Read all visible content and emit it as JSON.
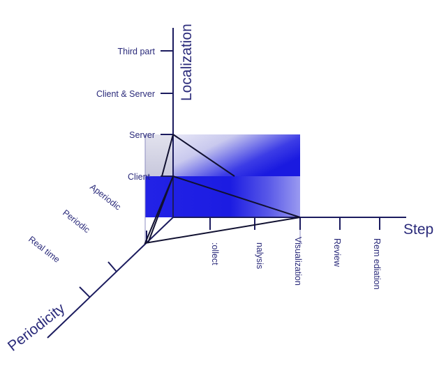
{
  "axes": {
    "localization": {
      "title": "Localization",
      "ticks": [
        "Third part",
        "Client & Server",
        "Server",
        "Client"
      ]
    },
    "step": {
      "title": "Step",
      "ticks": [
        "Collect",
        "Analysis",
        "Visualization",
        "Review",
        "Remediation"
      ],
      "tick_texts": [
        ":ollect",
        "nalysis",
        "Visualization",
        "Review",
        "Rem ediation"
      ]
    },
    "periodicity": {
      "title": "Periodicity",
      "ticks": [
        "Aperiodic",
        "Periodic",
        "Real time"
      ]
    }
  },
  "colors": {
    "axis": "#1b1b5e",
    "label": "#2a2a7a",
    "box_blue": "#1a1ae0",
    "box_light": "#e8e8f4"
  }
}
